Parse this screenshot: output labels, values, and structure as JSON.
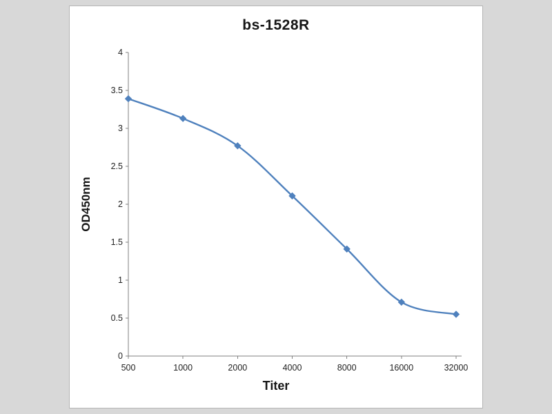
{
  "chart_data": {
    "type": "line",
    "title": "bs-1528R",
    "xlabel": "Titer",
    "ylabel": "OD450nm",
    "categories": [
      "500",
      "1000",
      "2000",
      "4000",
      "8000",
      "16000",
      "32000"
    ],
    "series": [
      {
        "name": "bs-1528R",
        "values": [
          3.39,
          3.13,
          2.77,
          2.11,
          1.41,
          0.71,
          0.55
        ]
      }
    ],
    "ylim": [
      0,
      4
    ],
    "ytick_step": 0.5,
    "grid": false,
    "legend": "none",
    "line_color": "#4f81bd",
    "axis_color": "#7f7f7f",
    "marker": "diamond",
    "smooth": true
  }
}
